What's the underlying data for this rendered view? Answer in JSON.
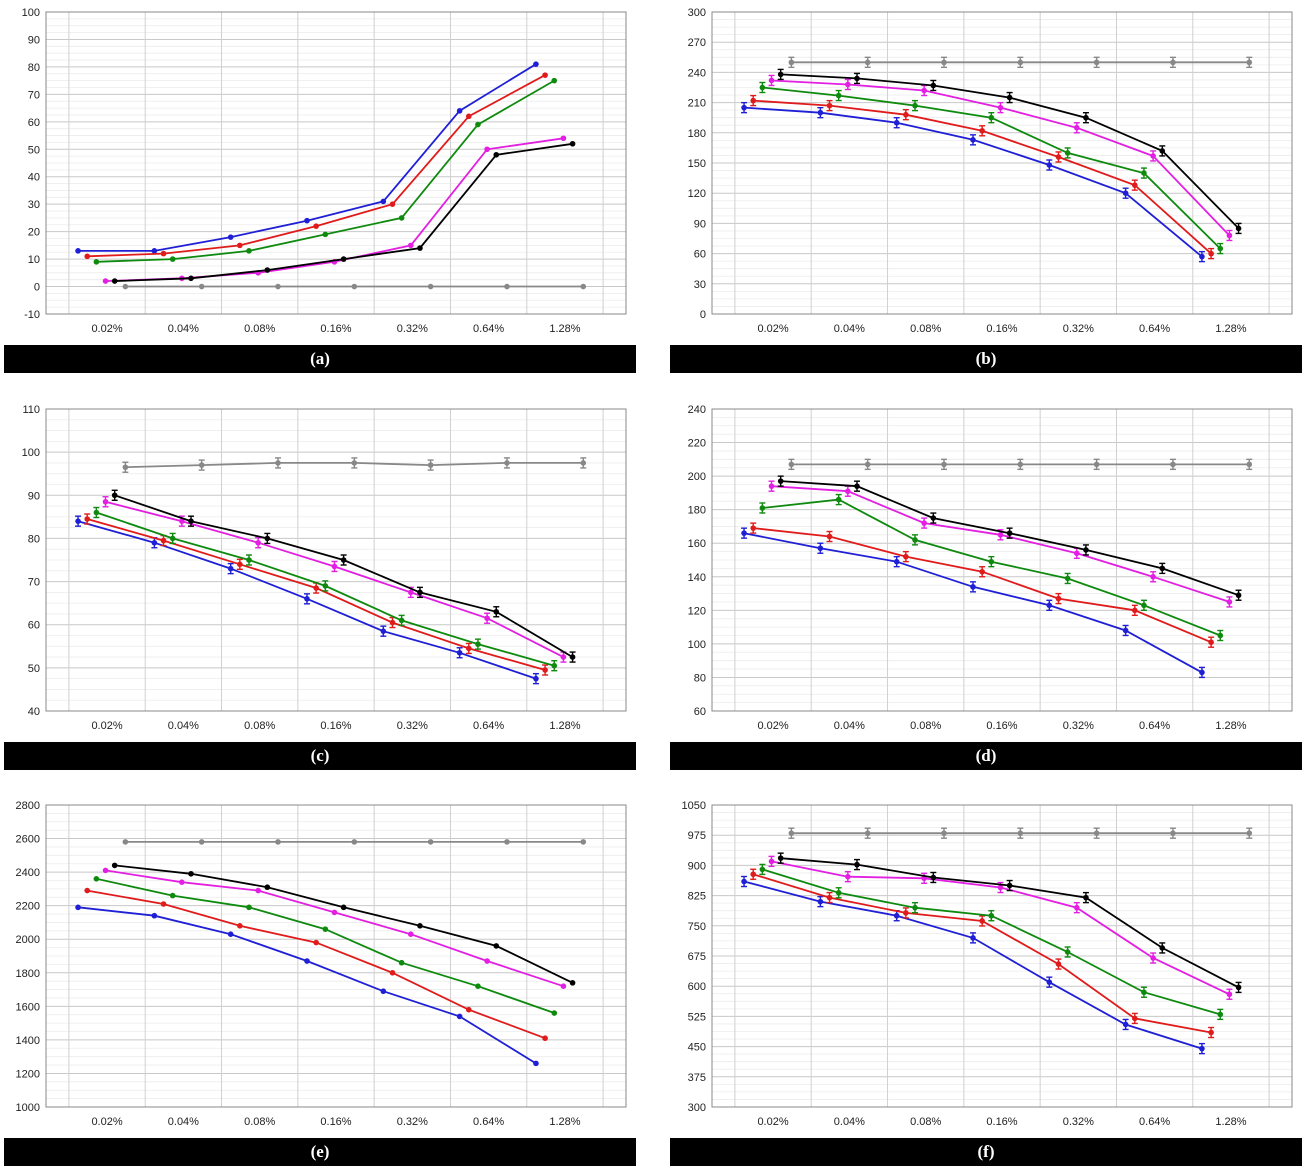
{
  "x_categories": [
    "0.02%",
    "0.04%",
    "0.08%",
    "0.16%",
    "0.32%",
    "0.64%",
    "1.28%"
  ],
  "series_colors": [
    "#1f1fd6",
    "#e01b1b",
    "#0e8a0e",
    "#e21fe2",
    "#000000",
    "#888888"
  ],
  "chart_data": [
    {
      "type": "line",
      "caption": "(a)",
      "ylim": [
        -10,
        100
      ],
      "ystep": 10,
      "error_bars": false,
      "categories": [
        "0.02%",
        "0.04%",
        "0.08%",
        "0.16%",
        "0.32%",
        "0.64%",
        "1.28%"
      ],
      "series": [
        {
          "values": [
            13,
            13,
            18,
            24,
            31,
            64,
            81
          ],
          "color": "#1f1fd6"
        },
        {
          "values": [
            11,
            12,
            15,
            22,
            30,
            62,
            77
          ],
          "color": "#e01b1b"
        },
        {
          "values": [
            9,
            10,
            13,
            19,
            25,
            59,
            75
          ],
          "color": "#0e8a0e"
        },
        {
          "values": [
            2,
            3,
            5,
            9,
            15,
            50,
            54
          ],
          "color": "#e21fe2"
        },
        {
          "values": [
            2,
            3,
            6,
            10,
            14,
            48,
            52
          ],
          "color": "#000000"
        },
        {
          "values": [
            0,
            0,
            0,
            0,
            0,
            0,
            0
          ],
          "color": "#888888"
        }
      ]
    },
    {
      "type": "line",
      "caption": "(b)",
      "ylim": [
        0,
        300
      ],
      "ystep": 30,
      "error_bars": true,
      "categories": [
        "0.02%",
        "0.04%",
        "0.08%",
        "0.16%",
        "0.32%",
        "0.64%",
        "1.28%"
      ],
      "series": [
        {
          "values": [
            205,
            200,
            190,
            173,
            148,
            120,
            57
          ],
          "color": "#1f1fd6"
        },
        {
          "values": [
            212,
            207,
            198,
            182,
            156,
            128,
            60
          ],
          "color": "#e01b1b"
        },
        {
          "values": [
            225,
            217,
            207,
            195,
            160,
            140,
            65
          ],
          "color": "#0e8a0e"
        },
        {
          "values": [
            232,
            228,
            222,
            205,
            185,
            157,
            78
          ],
          "color": "#e21fe2"
        },
        {
          "values": [
            238,
            234,
            227,
            215,
            195,
            162,
            85
          ],
          "color": "#000000"
        },
        {
          "values": [
            250,
            250,
            250,
            250,
            250,
            250,
            250
          ],
          "color": "#888888"
        }
      ]
    },
    {
      "type": "line",
      "caption": "(c)",
      "ylim": [
        40,
        110
      ],
      "ystep": 10,
      "error_bars": true,
      "categories": [
        "0.02%",
        "0.04%",
        "0.08%",
        "0.16%",
        "0.32%",
        "0.64%",
        "1.28%"
      ],
      "series": [
        {
          "values": [
            84,
            79,
            73,
            66,
            58.5,
            53.5,
            47.5
          ],
          "color": "#1f1fd6"
        },
        {
          "values": [
            84.5,
            79.5,
            74,
            68.5,
            60.5,
            54.5,
            49.5
          ],
          "color": "#e01b1b"
        },
        {
          "values": [
            86,
            80,
            75,
            69,
            61,
            55.5,
            50.5
          ],
          "color": "#0e8a0e"
        },
        {
          "values": [
            88.5,
            84,
            79,
            73.5,
            67.5,
            61.5,
            52.5
          ],
          "color": "#e21fe2"
        },
        {
          "values": [
            90,
            84,
            80,
            75,
            67.5,
            63,
            52.5
          ],
          "color": "#000000"
        },
        {
          "values": [
            96.5,
            97,
            97.5,
            97.5,
            97,
            97.5,
            97.5
          ],
          "color": "#888888"
        }
      ]
    },
    {
      "type": "line",
      "caption": "(d)",
      "ylim": [
        60,
        240
      ],
      "ystep": 20,
      "error_bars": true,
      "categories": [
        "0.02%",
        "0.04%",
        "0.08%",
        "0.16%",
        "0.32%",
        "0.64%",
        "1.28%"
      ],
      "series": [
        {
          "values": [
            166,
            157,
            149,
            134,
            123,
            108,
            83
          ],
          "color": "#1f1fd6"
        },
        {
          "values": [
            169,
            164,
            152,
            143,
            127,
            120,
            101
          ],
          "color": "#e01b1b"
        },
        {
          "values": [
            181,
            186,
            162,
            149,
            139,
            123,
            105
          ],
          "color": "#0e8a0e"
        },
        {
          "values": [
            194,
            191,
            172,
            165,
            154,
            140,
            125
          ],
          "color": "#e21fe2"
        },
        {
          "values": [
            197,
            194,
            175,
            166,
            156,
            145,
            129
          ],
          "color": "#000000"
        },
        {
          "values": [
            207,
            207,
            207,
            207,
            207,
            207,
            207
          ],
          "color": "#888888"
        }
      ]
    },
    {
      "type": "line",
      "caption": "(e)",
      "ylim": [
        1000,
        2800
      ],
      "ystep": 200,
      "error_bars": false,
      "categories": [
        "0.02%",
        "0.04%",
        "0.08%",
        "0.16%",
        "0.32%",
        "0.64%",
        "1.28%"
      ],
      "series": [
        {
          "values": [
            2190,
            2140,
            2030,
            1870,
            1690,
            1540,
            1260
          ],
          "color": "#1f1fd6"
        },
        {
          "values": [
            2290,
            2210,
            2080,
            1980,
            1800,
            1580,
            1410
          ],
          "color": "#e01b1b"
        },
        {
          "values": [
            2360,
            2260,
            2190,
            2060,
            1860,
            1720,
            1560
          ],
          "color": "#0e8a0e"
        },
        {
          "values": [
            2410,
            2340,
            2290,
            2160,
            2030,
            1870,
            1720
          ],
          "color": "#e21fe2"
        },
        {
          "values": [
            2440,
            2390,
            2310,
            2190,
            2080,
            1960,
            1740
          ],
          "color": "#000000"
        },
        {
          "values": [
            2580,
            2580,
            2580,
            2580,
            2580,
            2580,
            2580
          ],
          "color": "#888888"
        }
      ]
    },
    {
      "type": "line",
      "caption": "(f)",
      "ylim": [
        300,
        1050
      ],
      "ystep": 75,
      "error_bars": true,
      "categories": [
        "0.02%",
        "0.04%",
        "0.08%",
        "0.16%",
        "0.32%",
        "0.64%",
        "1.28%"
      ],
      "series": [
        {
          "values": [
            860,
            810,
            775,
            720,
            610,
            505,
            445
          ],
          "color": "#1f1fd6"
        },
        {
          "values": [
            878,
            820,
            782,
            762,
            655,
            520,
            485
          ],
          "color": "#e01b1b"
        },
        {
          "values": [
            890,
            832,
            795,
            775,
            685,
            585,
            530
          ],
          "color": "#0e8a0e"
        },
        {
          "values": [
            910,
            872,
            868,
            845,
            795,
            670,
            580
          ],
          "color": "#e21fe2"
        },
        {
          "values": [
            918,
            902,
            870,
            850,
            820,
            695,
            597
          ],
          "color": "#000000"
        },
        {
          "values": [
            980,
            980,
            980,
            980,
            980,
            980,
            980
          ],
          "color": "#888888"
        }
      ]
    }
  ]
}
